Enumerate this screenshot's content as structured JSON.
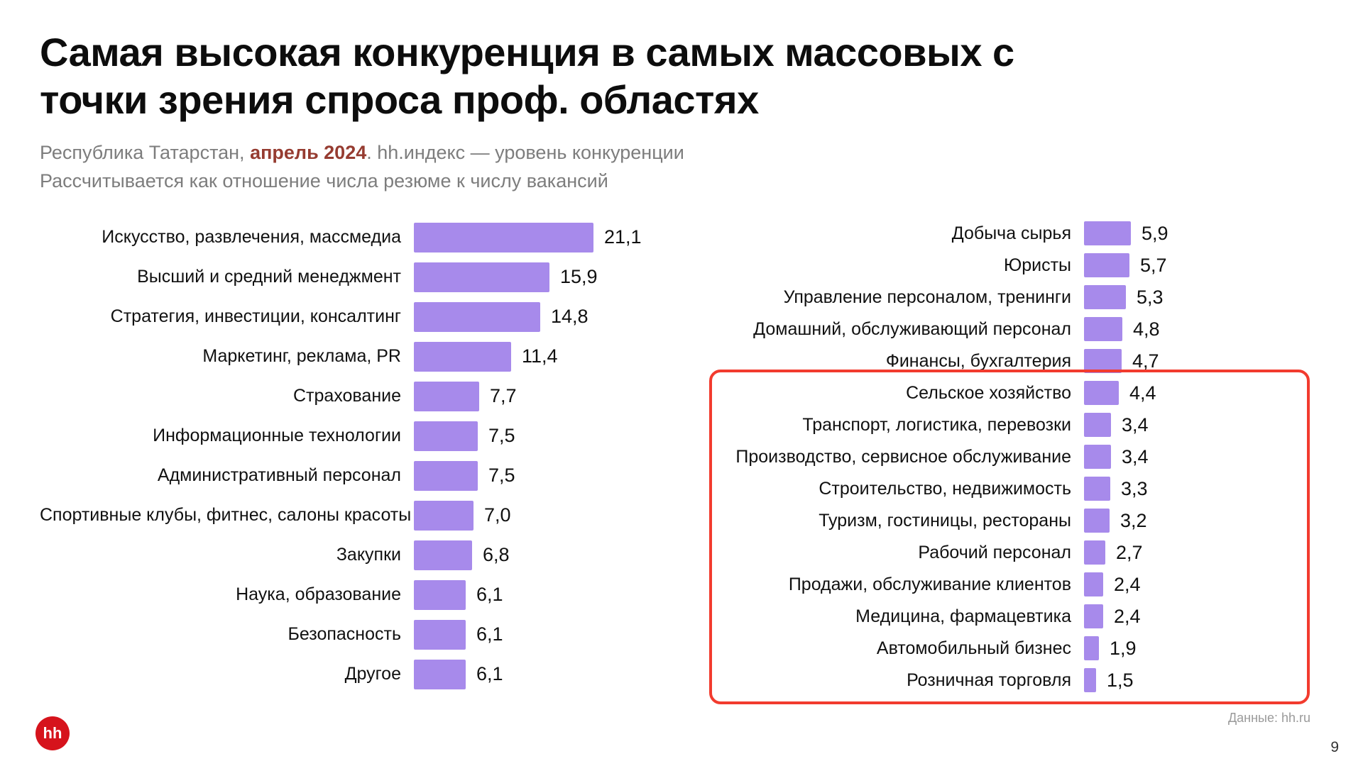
{
  "page": {
    "title": "Самая высокая конкуренция в самых массовых с точки зрения спроса проф. областях",
    "subtitle": {
      "part1": "Республика Татарстан, ",
      "part2": "апрель 2024",
      "part3": ". hh.индекс — уровень конкуренции",
      "line2": "Рассчитывается как отношение числа резюме к числу вакансий"
    },
    "footer": {
      "logo_text": "hh",
      "data_source": "Данные: hh.ru",
      "page_number": "9"
    },
    "colors": {
      "bar": "#a78aeb",
      "highlight_border": "#f23b2e",
      "logo_bg": "#d6131c",
      "subtitle_accent": "#963c31"
    }
  },
  "chart_data": [
    {
      "type": "bar",
      "orientation": "horizontal",
      "group": "left",
      "unit": "hh.индекс — уровень конкуренции",
      "xlim": [
        0,
        22
      ],
      "grid": false,
      "categories": [
        "Искусство, развлечения, массмедиа",
        "Высший и средний менеджмент",
        "Стратегия, инвестиции, консалтинг",
        "Маркетинг, реклама, PR",
        "Страхование",
        "Информационные технологии",
        "Административный персонал",
        "Спортивные клубы, фитнес, салоны красоты",
        "Закупки",
        "Наука, образование",
        "Безопасность",
        "Другое"
      ],
      "values": [
        21.1,
        15.9,
        14.8,
        11.4,
        7.7,
        7.5,
        7.5,
        7.0,
        6.8,
        6.1,
        6.1,
        6.1
      ],
      "value_labels": [
        "21,1",
        "15,9",
        "14,8",
        "11,4",
        "7,7",
        "7,5",
        "7,5",
        "7,0",
        "6,8",
        "6,1",
        "6,1",
        "6,1"
      ]
    },
    {
      "type": "bar",
      "orientation": "horizontal",
      "group": "right",
      "unit": "hh.индекс — уровень конкуренции",
      "xlim": [
        0,
        6.5
      ],
      "grid": false,
      "categories": [
        "Добыча сырья",
        "Юристы",
        "Управление персоналом, тренинги",
        "Домашний, обслуживающий персонал",
        "Финансы, бухгалтерия",
        "Сельское хозяйство",
        "Транспорт, логистика, перевозки",
        "Производство, сервисное обслуживание",
        "Строительство, недвижимость",
        "Туризм, гостиницы, рестораны",
        "Рабочий персонал",
        "Продажи, обслуживание клиентов",
        "Медицина, фармацевтика",
        "Автомобильный бизнес",
        "Розничная торговля"
      ],
      "values": [
        5.9,
        5.7,
        5.3,
        4.8,
        4.7,
        4.4,
        3.4,
        3.4,
        3.3,
        3.2,
        2.7,
        2.4,
        2.4,
        1.9,
        1.5
      ],
      "value_labels": [
        "5,9",
        "5,7",
        "5,3",
        "4,8",
        "4,7",
        "4,4",
        "3,4",
        "3,4",
        "3,3",
        "3,2",
        "2,7",
        "2,4",
        "2,4",
        "1,9",
        "1,5"
      ],
      "highlight": {
        "from": "Сельское хозяйство",
        "to": "Розничная торговля",
        "style": "red-outline"
      }
    }
  ]
}
